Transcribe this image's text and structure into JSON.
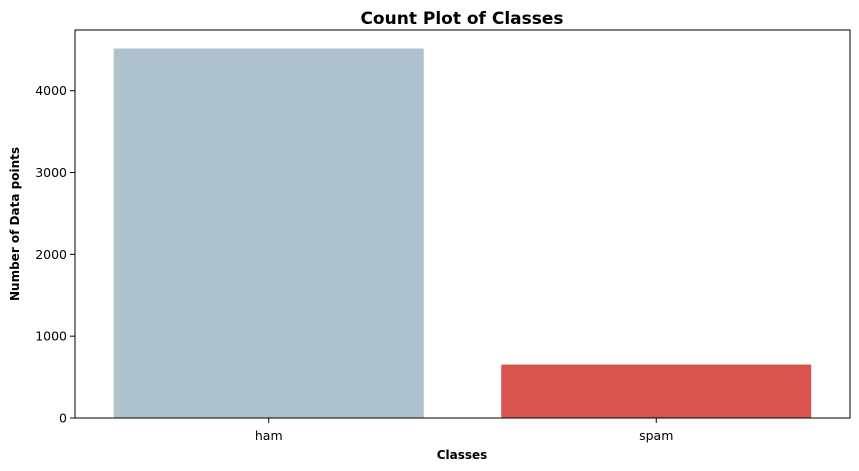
{
  "chart_data": {
    "type": "bar",
    "title": "Count Plot of Classes",
    "xlabel": "Classes",
    "ylabel": "Number of Data points",
    "categories": [
      "ham",
      "spam"
    ],
    "values": [
      4516,
      653
    ],
    "colors": [
      "#adc2cd",
      "#d9534f"
    ],
    "ylim": [
      0,
      4742
    ],
    "yticks": [
      0,
      1000,
      2000,
      3000,
      4000
    ],
    "grid": false,
    "legend": "none"
  }
}
